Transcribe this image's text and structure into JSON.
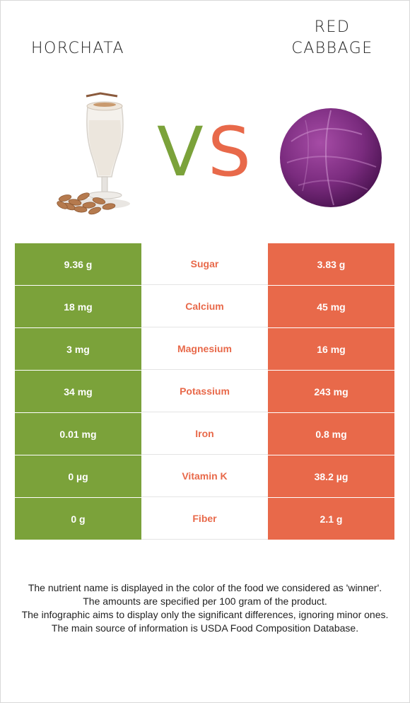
{
  "left_food": {
    "name": "HORCHATA",
    "color": "#7ba23a"
  },
  "right_food": {
    "name": "RED CABBAGE",
    "name_line1": "RED",
    "name_line2": "CABBAGE",
    "color": "#e8694a"
  },
  "vs": {
    "v": "V",
    "s": "S"
  },
  "rows": [
    {
      "nutrient": "Sugar",
      "left": "9.36 g",
      "right": "3.83 g",
      "winner": "right"
    },
    {
      "nutrient": "Calcium",
      "left": "18 mg",
      "right": "45 mg",
      "winner": "right"
    },
    {
      "nutrient": "Magnesium",
      "left": "3 mg",
      "right": "16 mg",
      "winner": "right"
    },
    {
      "nutrient": "Potassium",
      "left": "34 mg",
      "right": "243 mg",
      "winner": "right"
    },
    {
      "nutrient": "Iron",
      "left": "0.01 mg",
      "right": "0.8 mg",
      "winner": "right"
    },
    {
      "nutrient": "Vitamin K",
      "left": "0 µg",
      "right": "38.2 µg",
      "winner": "right"
    },
    {
      "nutrient": "Fiber",
      "left": "0 g",
      "right": "2.1 g",
      "winner": "right"
    }
  ],
  "footer": {
    "line1": "The nutrient name is displayed in the color of the food we considered as 'winner'.",
    "line2": "The amounts are specified per 100 gram of the product.",
    "line3": "The infographic aims to display only the significant differences, ignoring minor ones.",
    "line4": "The main source of information is USDA Food Composition Database."
  }
}
